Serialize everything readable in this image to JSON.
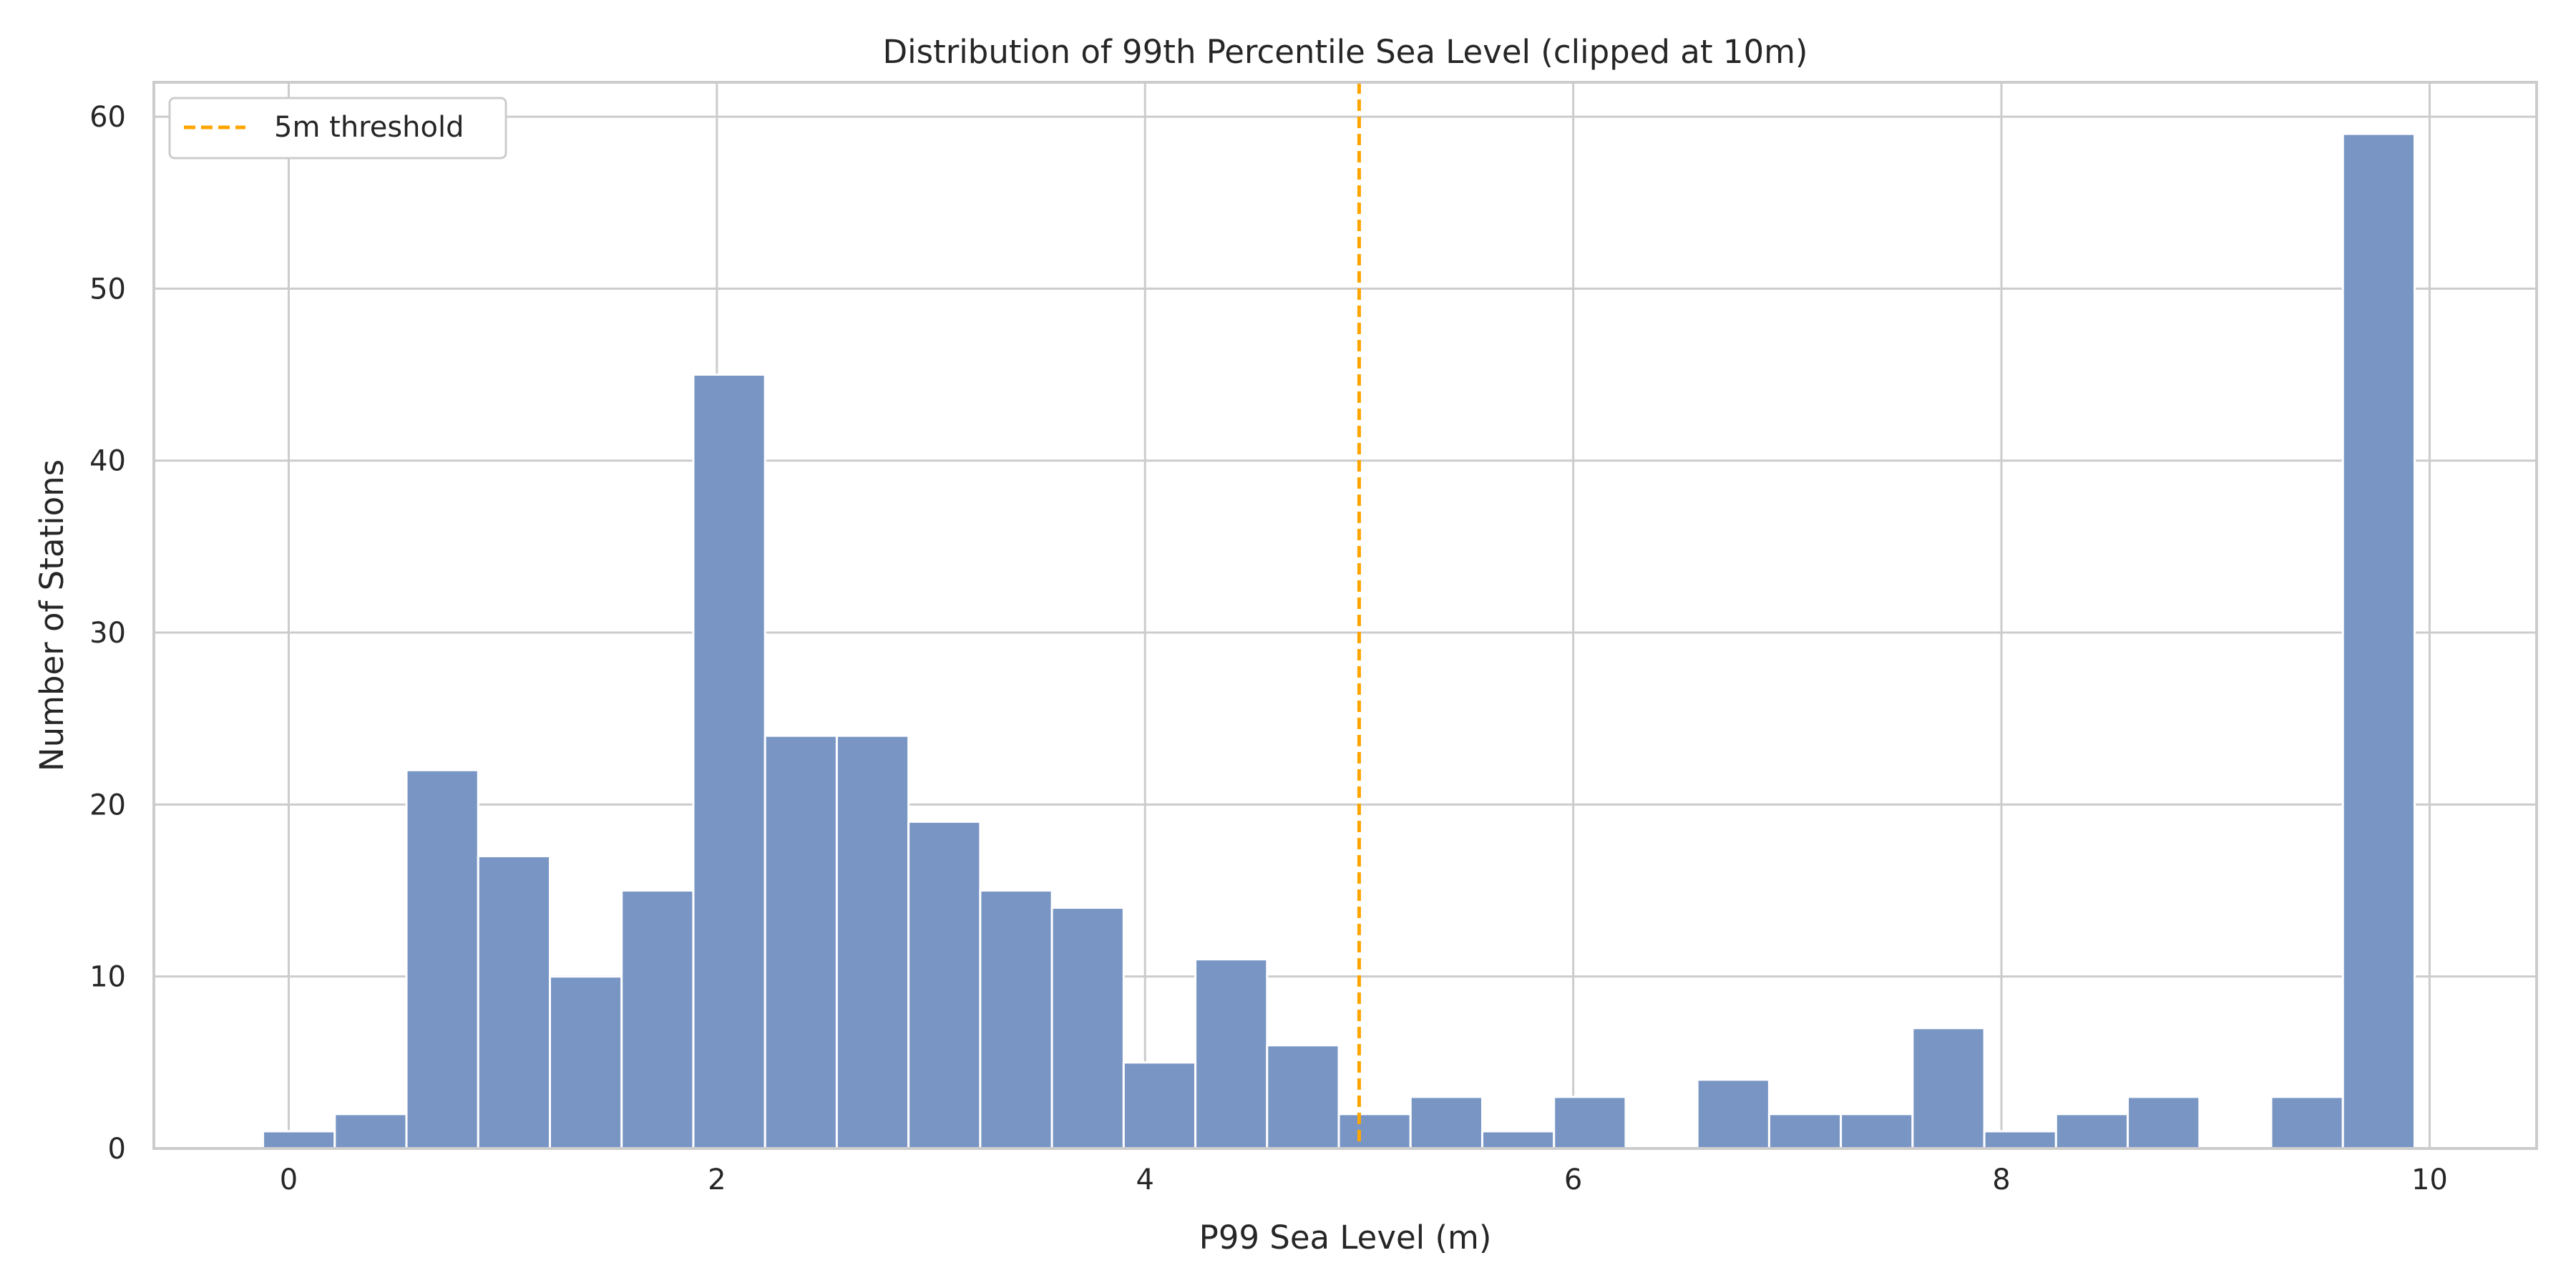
{
  "chart_data": {
    "type": "bar",
    "title": "Distribution of 99th Percentile Sea Level (clipped at 10m)",
    "xlabel": "P99 Sea Level (m)",
    "ylabel": "Number of Stations",
    "xlim": [
      -0.63,
      10.5
    ],
    "ylim": [
      0,
      62
    ],
    "x_ticks": [
      0,
      2,
      4,
      6,
      8,
      10
    ],
    "y_ticks": [
      0,
      10,
      20,
      30,
      40,
      50,
      60
    ],
    "grid": true,
    "bar_color": "#7895c4",
    "bins": [
      {
        "x0": -0.12,
        "x1": 0.215,
        "count": 1
      },
      {
        "x0": 0.215,
        "x1": 0.55,
        "count": 2
      },
      {
        "x0": 0.55,
        "x1": 0.885,
        "count": 22
      },
      {
        "x0": 0.885,
        "x1": 1.22,
        "count": 17
      },
      {
        "x0": 1.22,
        "x1": 1.555,
        "count": 10
      },
      {
        "x0": 1.555,
        "x1": 1.89,
        "count": 15
      },
      {
        "x0": 1.89,
        "x1": 2.225,
        "count": 45
      },
      {
        "x0": 2.225,
        "x1": 2.56,
        "count": 24
      },
      {
        "x0": 2.56,
        "x1": 2.895,
        "count": 24
      },
      {
        "x0": 2.895,
        "x1": 3.23,
        "count": 19
      },
      {
        "x0": 3.23,
        "x1": 3.565,
        "count": 15
      },
      {
        "x0": 3.565,
        "x1": 3.9,
        "count": 14
      },
      {
        "x0": 3.9,
        "x1": 4.235,
        "count": 5
      },
      {
        "x0": 4.235,
        "x1": 4.57,
        "count": 11
      },
      {
        "x0": 4.57,
        "x1": 4.905,
        "count": 6
      },
      {
        "x0": 4.905,
        "x1": 5.24,
        "count": 2
      },
      {
        "x0": 5.24,
        "x1": 5.575,
        "count": 3
      },
      {
        "x0": 5.575,
        "x1": 5.91,
        "count": 1
      },
      {
        "x0": 5.91,
        "x1": 6.245,
        "count": 3
      },
      {
        "x0": 6.245,
        "x1": 6.58,
        "count": 0
      },
      {
        "x0": 6.58,
        "x1": 6.915,
        "count": 4
      },
      {
        "x0": 6.915,
        "x1": 7.25,
        "count": 2
      },
      {
        "x0": 7.25,
        "x1": 7.585,
        "count": 2
      },
      {
        "x0": 7.585,
        "x1": 7.92,
        "count": 7
      },
      {
        "x0": 7.92,
        "x1": 8.255,
        "count": 1
      },
      {
        "x0": 8.255,
        "x1": 8.59,
        "count": 2
      },
      {
        "x0": 8.59,
        "x1": 8.925,
        "count": 3
      },
      {
        "x0": 8.925,
        "x1": 9.26,
        "count": 0
      },
      {
        "x0": 9.26,
        "x1": 9.595,
        "count": 3
      },
      {
        "x0": 9.595,
        "x1": 9.93,
        "count": 59
      }
    ],
    "threshold": {
      "value": 5,
      "label": "5m threshold",
      "color": "#ffa500"
    },
    "legend": {
      "position": "top-left",
      "entries": [
        "5m threshold"
      ]
    }
  }
}
